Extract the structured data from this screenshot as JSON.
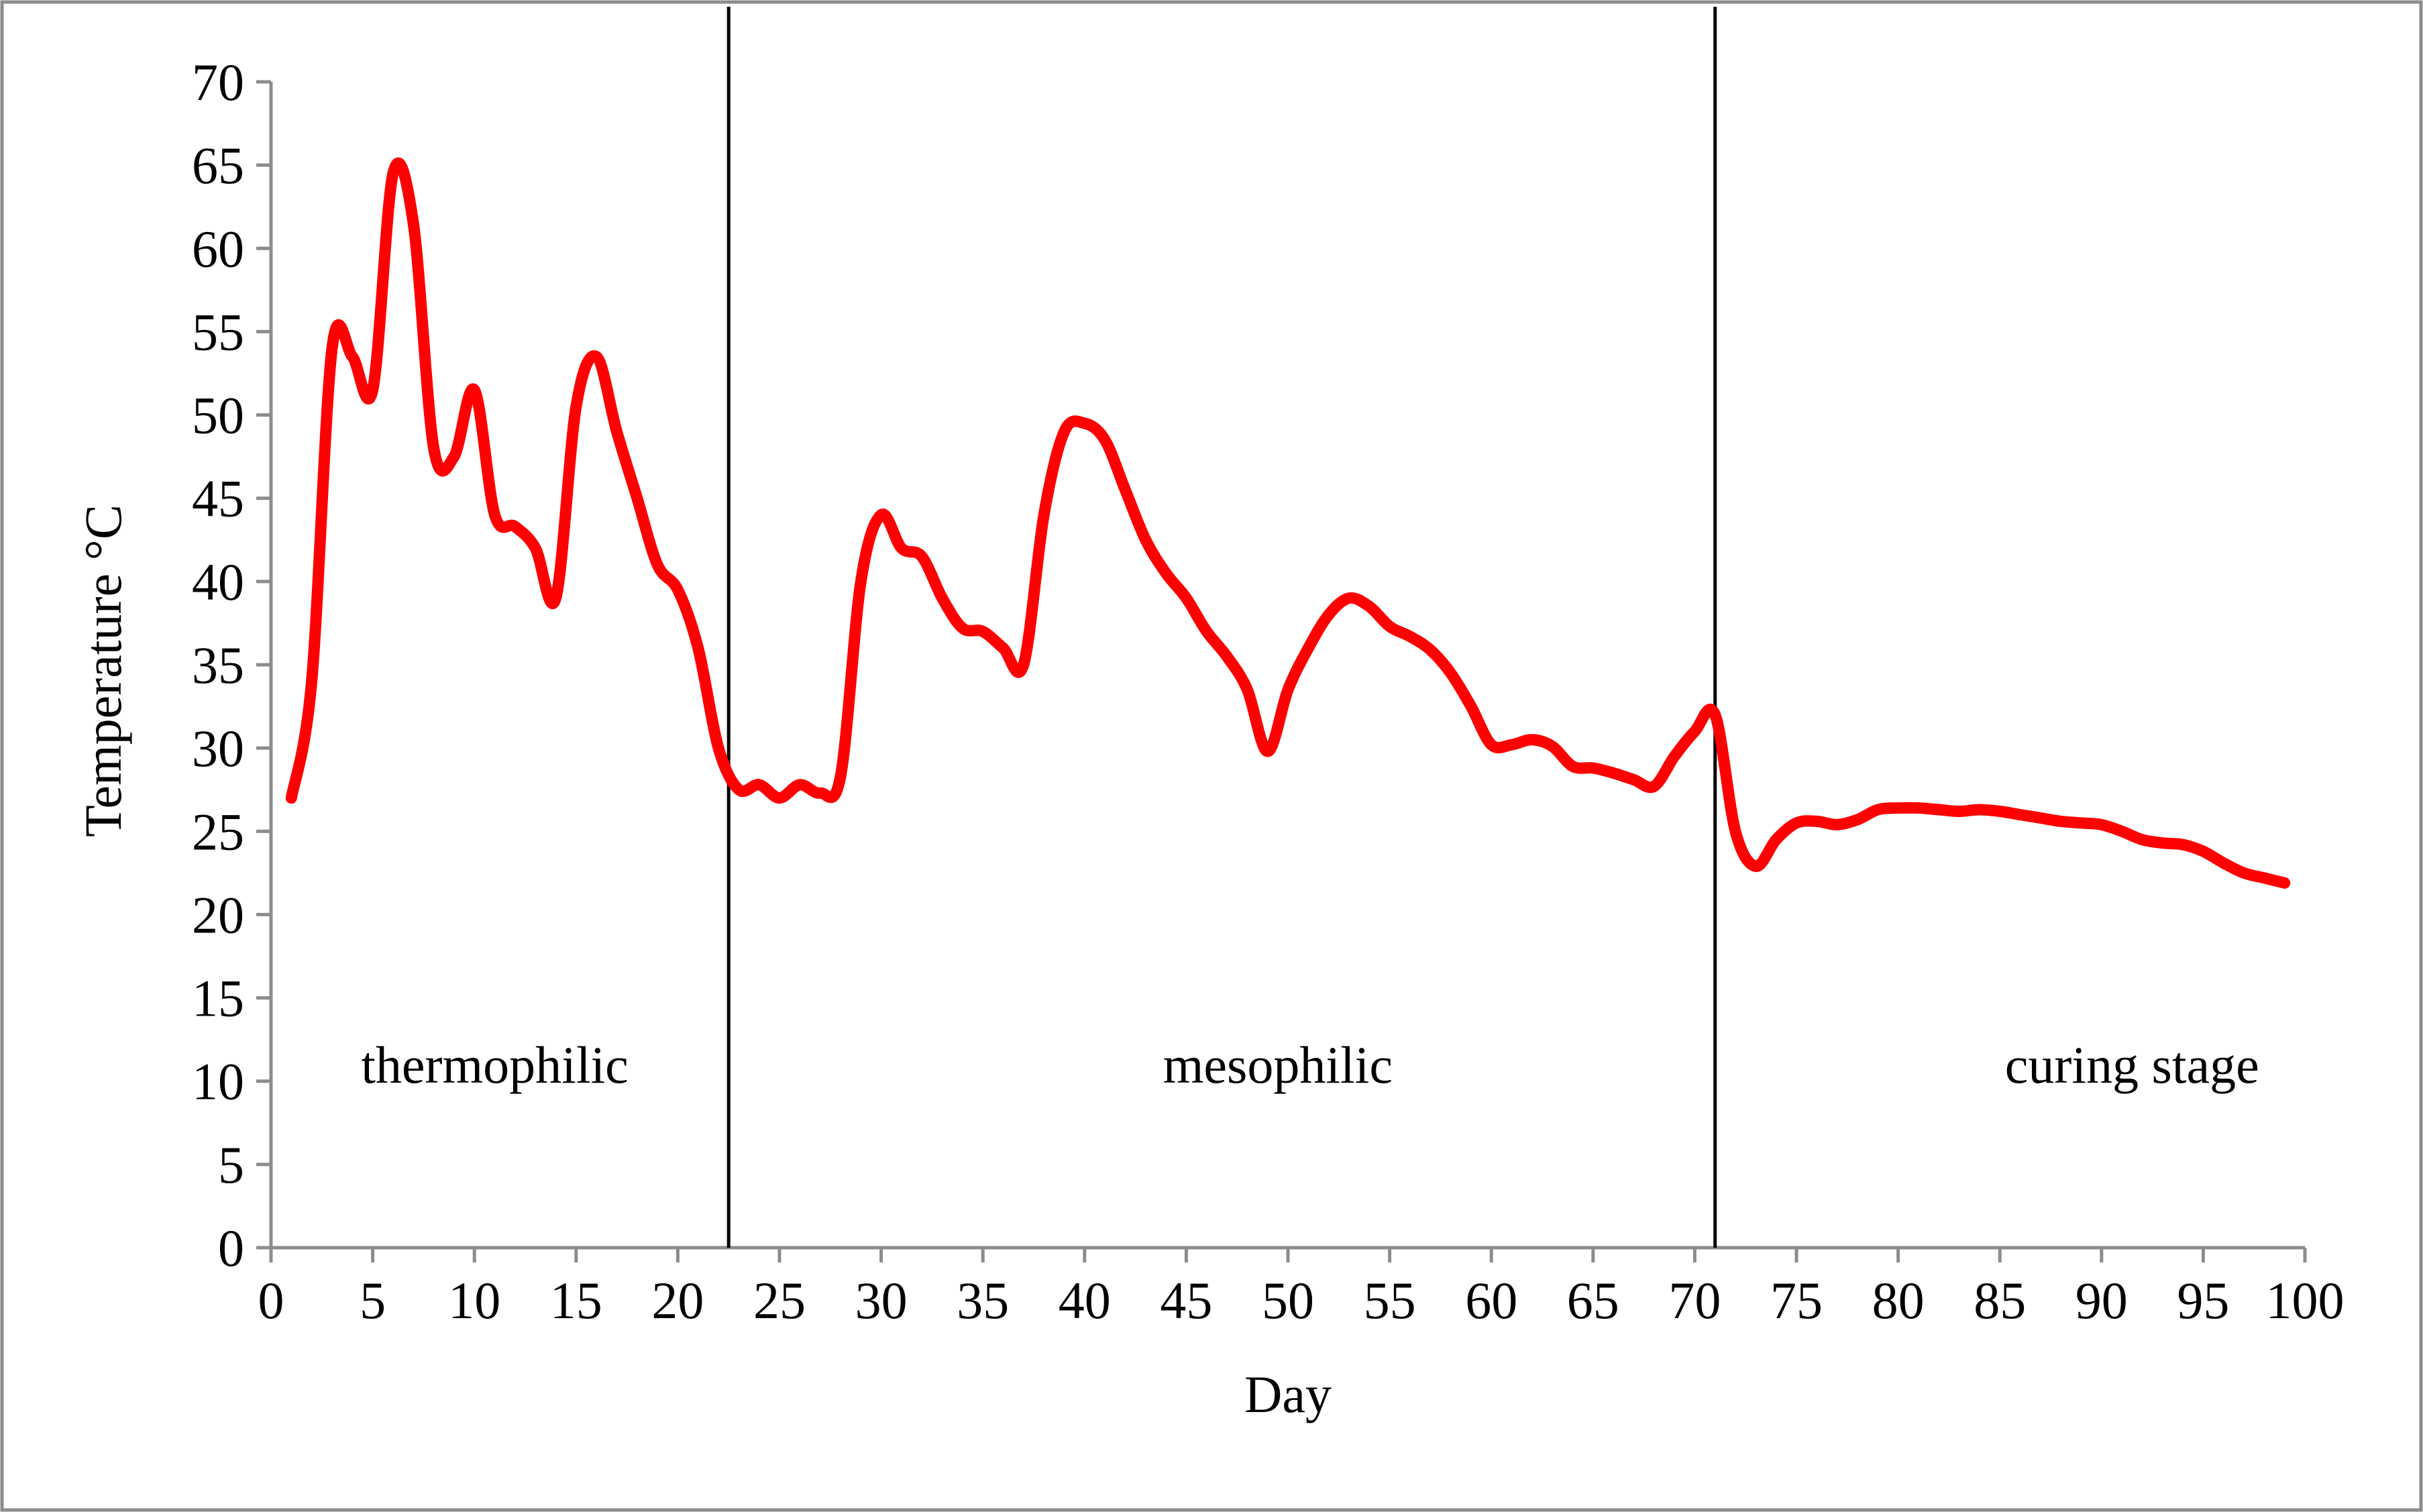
{
  "chart_data": {
    "type": "line",
    "title": "",
    "xlabel": "Day",
    "ylabel": "Temperature °C",
    "xlim": [
      0,
      100
    ],
    "ylim": [
      0,
      70
    ],
    "xticks": [
      0,
      5,
      10,
      15,
      20,
      25,
      30,
      35,
      40,
      45,
      50,
      55,
      60,
      65,
      70,
      75,
      80,
      85,
      90,
      95,
      100
    ],
    "yticks": [
      0,
      5,
      10,
      15,
      20,
      25,
      30,
      35,
      40,
      45,
      50,
      55,
      60,
      65,
      70
    ],
    "xtick_labels": [
      "0",
      "5",
      "10",
      "15",
      "20",
      "25",
      "30",
      "35",
      "40",
      "45",
      "50",
      "55",
      "60",
      "65",
      "70",
      "75",
      "80",
      "85",
      "90",
      "95",
      "100"
    ],
    "ytick_labels": [
      "0",
      "5",
      "10",
      "15",
      "20",
      "25",
      "30",
      "35",
      "40",
      "45",
      "50",
      "55",
      "60",
      "65",
      "70"
    ],
    "grid": false,
    "legend": null,
    "series": [
      {
        "name": "Temperature",
        "color": "#ff0000",
        "x": [
          1,
          2,
          3,
          4,
          5,
          6,
          7,
          8,
          9,
          10,
          11,
          12,
          13,
          14,
          15,
          16,
          17,
          18,
          19,
          20,
          21,
          22,
          23,
          24,
          25,
          26,
          27,
          28,
          29,
          30,
          31,
          32,
          33,
          34,
          35,
          36,
          37,
          38,
          39,
          40,
          41,
          42,
          43,
          44,
          45,
          46,
          47,
          48,
          49,
          50,
          51,
          52,
          53,
          54,
          55,
          56,
          57,
          58,
          59,
          60,
          61,
          62,
          63,
          64,
          65,
          66,
          67,
          68,
          69,
          70,
          71,
          72,
          73,
          74,
          75,
          76,
          77,
          78,
          79,
          80,
          81,
          82,
          83,
          84,
          85,
          86,
          87,
          88,
          89,
          90,
          91,
          92,
          93,
          94,
          95,
          96,
          97,
          98,
          99
        ],
        "values": [
          27,
          34,
          54,
          53.5,
          51.5,
          64.5,
          61.5,
          48,
          47.5,
          51.5,
          44,
          43.3,
          42,
          39,
          50.5,
          53.5,
          49,
          45,
          41,
          39.5,
          36,
          30,
          27.5,
          27.8,
          27,
          27.8,
          27.3,
          28.3,
          40,
          44,
          42,
          41.5,
          39,
          37.2,
          37,
          36,
          35,
          44,
          49,
          49.5,
          48.5,
          45.5,
          42.5,
          40.5,
          39,
          37,
          35.5,
          33.5,
          29.8,
          33.5,
          36,
          38,
          39,
          38.5,
          37.3,
          36.7,
          35.9,
          34.5,
          32.5,
          30.2,
          30.2,
          30.5,
          30.1,
          28.9,
          28.8,
          28.5,
          28.1,
          27.7,
          29.5,
          31,
          32,
          25,
          22.9,
          24.5,
          25.5,
          25.6,
          25.4,
          25.7,
          26.3,
          26.4,
          26.4,
          26.3,
          26.2,
          26.3,
          26.2,
          26,
          25.8,
          25.6,
          25.5,
          25.4,
          25,
          24.5,
          24.3,
          24.2,
          23.8,
          23.1,
          22.5,
          22.2,
          21.9
        ]
      }
    ],
    "phase_boundaries": [
      22.5,
      71
    ],
    "annotations": [
      {
        "text": "thermophilic",
        "x": 11,
        "y": 11
      },
      {
        "text": "mesophilic",
        "x": 49.5,
        "y": 11
      },
      {
        "text": "curing stage",
        "x": 91.5,
        "y": 11
      }
    ]
  }
}
